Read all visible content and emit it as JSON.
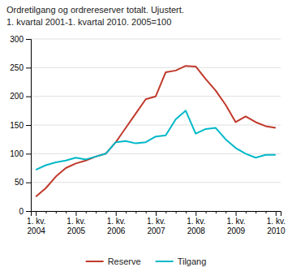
{
  "chart_data": {
    "type": "line",
    "title": "Ordretilgang og ordrereserver totalt. Ujustert.",
    "subtitle": "1. kvartal 2001-1. kvartal 2010. 2005=100",
    "categories": [
      "1. kv.\n2004",
      null,
      null,
      null,
      "1. kv.\n2005",
      null,
      null,
      null,
      "1. kv.\n2006",
      null,
      null,
      null,
      "1. kv.\n2007",
      null,
      null,
      null,
      "1. kv.\n2008",
      null,
      null,
      null,
      "1. kv.\n2009",
      null,
      null,
      null,
      "1. kv.\n2010"
    ],
    "series": [
      {
        "name": "Reserve",
        "color": "#c0392b",
        "values": [
          25,
          40,
          60,
          75,
          83,
          88,
          95,
          100,
          120,
          145,
          170,
          195,
          200,
          242,
          245,
          253,
          252,
          230,
          210,
          185,
          155,
          165,
          155,
          148,
          145
        ]
      },
      {
        "name": "Tilgang",
        "color": "#00b8c8",
        "values": [
          72,
          80,
          85,
          88,
          93,
          90,
          95,
          100,
          120,
          122,
          118,
          120,
          130,
          132,
          160,
          175,
          135,
          143,
          145,
          125,
          110,
          100,
          93,
          98,
          98
        ]
      }
    ],
    "ylim": [
      0,
      300
    ],
    "yticks": [
      0,
      50,
      100,
      150,
      200,
      250,
      300
    ],
    "grid": true,
    "legend": "bottom"
  }
}
